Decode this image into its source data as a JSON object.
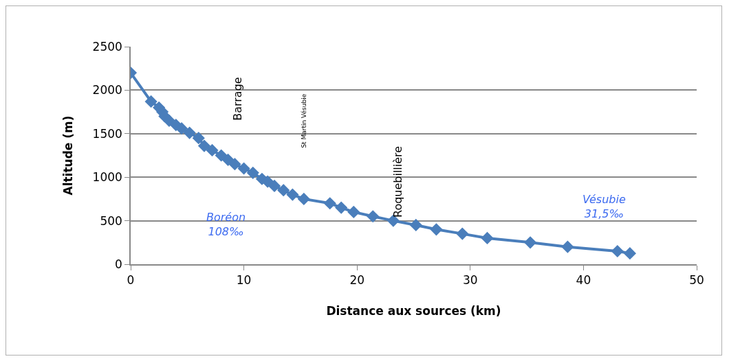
{
  "chart_data": {
    "type": "line",
    "xlabel": "Distance aux sources (km)",
    "ylabel": "Altitude (m)",
    "x": [
      0,
      1.8,
      2.5,
      2.8,
      3.0,
      3.4,
      4.0,
      4.5,
      5.2,
      6.0,
      6.5,
      7.2,
      8.0,
      8.6,
      9.2,
      10.0,
      10.8,
      11.6,
      12.1,
      12.7,
      13.5,
      14.3,
      15.3,
      17.6,
      18.6,
      19.7,
      21.4,
      23.2,
      25.2,
      27.0,
      29.3,
      31.5,
      35.3,
      38.6,
      43.0,
      44.1
    ],
    "series": [
      {
        "color": "#4a7ebb",
        "values": [
          2200,
          1870,
          1800,
          1750,
          1700,
          1650,
          1600,
          1560,
          1510,
          1450,
          1360,
          1310,
          1250,
          1200,
          1150,
          1100,
          1050,
          980,
          950,
          900,
          850,
          800,
          750,
          700,
          650,
          600,
          550,
          500,
          450,
          400,
          350,
          300,
          250,
          200,
          150,
          125
        ]
      }
    ],
    "xlim": [
      0,
      50
    ],
    "xticks": [
      0,
      10,
      20,
      30,
      40,
      50
    ],
    "ylim": [
      0,
      2500
    ],
    "yticks": [
      0,
      500,
      1000,
      1500,
      2000,
      2500
    ],
    "grid": "y",
    "legend": false,
    "marker": "diamond",
    "line_style": "solid",
    "annotations": [
      "Barrage",
      "St Martin Vésubie",
      "Roquebillière",
      "Boréon\n108‰",
      "Vésubie\n31,5‰"
    ]
  }
}
